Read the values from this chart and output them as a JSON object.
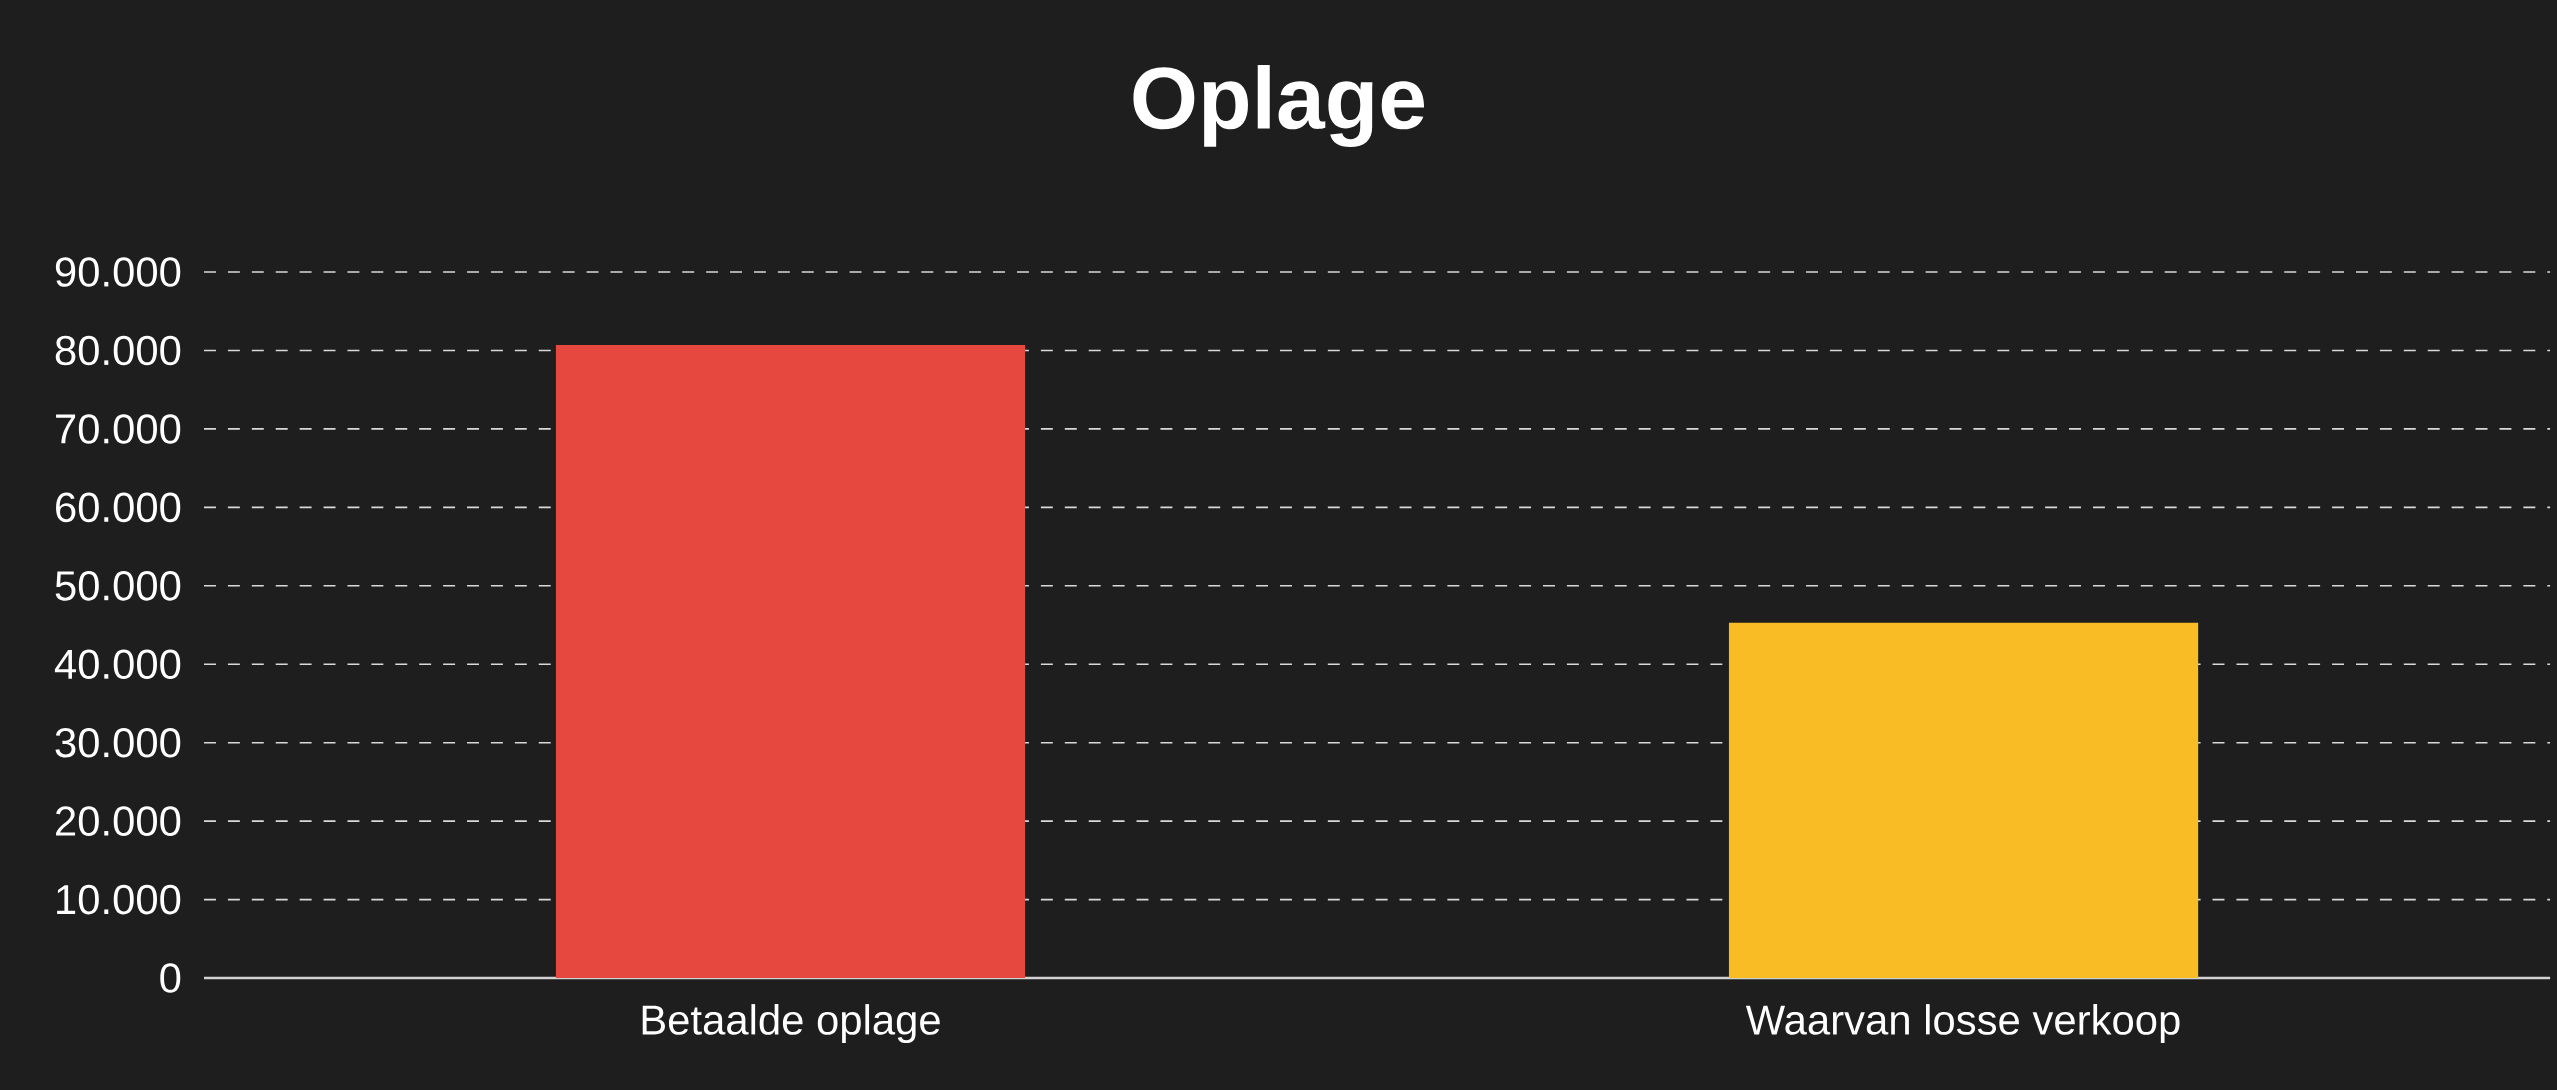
{
  "chart_data": {
    "type": "bar",
    "title": "Oplage",
    "categories": [
      "Betaalde oplage",
      "Waarvan losse verkoop"
    ],
    "values": [
      80700,
      45300
    ],
    "colors": [
      "#e64840",
      "#f9bc24"
    ],
    "ylim": [
      0,
      90000
    ],
    "yticks": [
      0,
      {
        "value": 10000,
        "label": "10.000"
      },
      {
        "value": 20000,
        "label": "20.000"
      },
      {
        "value": 30000,
        "label": "30.000"
      },
      {
        "value": 40000,
        "label": "40.000"
      },
      {
        "value": 50000,
        "label": "50.000"
      },
      {
        "value": 60000,
        "label": "60.000"
      },
      {
        "value": 70000,
        "label": "70.000"
      },
      {
        "value": 80000,
        "label": "80.000"
      },
      {
        "value": 90000,
        "label": "90.000"
      }
    ],
    "grid": "y"
  }
}
